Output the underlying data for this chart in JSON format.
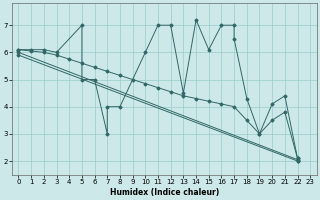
{
  "xlabel": "Humidex (Indice chaleur)",
  "background_color": "#cce8e8",
  "grid_color": "#99cccc",
  "line_color": "#336666",
  "xlim": [
    -0.5,
    23.5
  ],
  "ylim": [
    1.5,
    7.8
  ],
  "xticks": [
    0,
    1,
    2,
    3,
    4,
    5,
    6,
    7,
    8,
    9,
    10,
    11,
    12,
    13,
    14,
    15,
    16,
    17,
    18,
    19,
    20,
    21,
    22,
    23
  ],
  "yticks": [
    2,
    3,
    4,
    5,
    6,
    7
  ],
  "main_x": [
    0,
    1,
    2,
    3,
    5,
    5,
    6,
    7,
    7,
    8,
    10,
    11,
    12,
    13,
    14,
    15,
    16,
    17,
    17,
    18,
    19,
    20,
    21,
    22,
    22
  ],
  "main_y": [
    6.1,
    6.1,
    6.1,
    6.0,
    7.0,
    5.0,
    5.0,
    3.0,
    4.0,
    4.0,
    6.0,
    7.0,
    7.0,
    4.5,
    7.2,
    6.1,
    7.0,
    7.0,
    6.5,
    4.3,
    3.0,
    4.1,
    4.4,
    2.1,
    2.0
  ],
  "line1_x": [
    0,
    1,
    2,
    3,
    4,
    5,
    6,
    7,
    8,
    9,
    10,
    11,
    12,
    13,
    14,
    15,
    16,
    17,
    18,
    19,
    20,
    21,
    22
  ],
  "line1_y": [
    6.1,
    6.05,
    6.0,
    5.9,
    5.75,
    5.6,
    5.45,
    5.3,
    5.15,
    5.0,
    4.85,
    4.7,
    4.55,
    4.4,
    4.3,
    4.2,
    4.1,
    4.0,
    3.5,
    3.0,
    3.5,
    3.8,
    2.1
  ],
  "line2_x": [
    0,
    22
  ],
  "line2_y": [
    6.0,
    2.05
  ],
  "line3_x": [
    0,
    22
  ],
  "line3_y": [
    5.9,
    2.0
  ]
}
